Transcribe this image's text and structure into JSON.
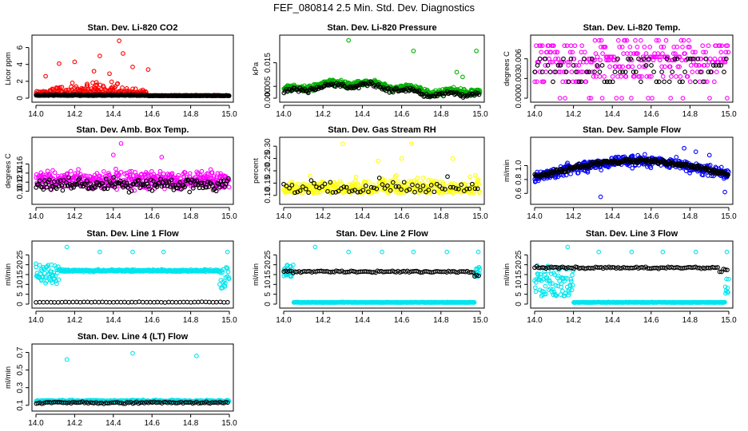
{
  "figure": {
    "title": "FEF_080814  2.5 Min. Std. Dev. Diagnostics"
  },
  "chart_data": [
    {
      "type": "scatter",
      "title": "Stan. Dev. Li-820 CO2",
      "xlabel": "",
      "ylabel": "Licor ppm",
      "xlim": [
        14.0,
        15.0
      ],
      "ylim": [
        0,
        7
      ],
      "xticks": [
        "14.0",
        "14.2",
        "14.4",
        "14.6",
        "14.8",
        "15.0"
      ],
      "yticks": [
        "0",
        "2",
        "4",
        "6"
      ],
      "series": [
        {
          "name": "color series",
          "color": "#ff0000",
          "x_range": [
            14.0,
            15.0
          ],
          "baseline": 0.3,
          "note": "scatter 0.3-3 between 14.0 and 14.57, then ~0.3",
          "points": [
            [
              14.33,
              5.0
            ],
            [
              14.2,
              4.3
            ],
            [
              14.43,
              6.8
            ],
            [
              14.45,
              5.3
            ],
            [
              14.12,
              4.1
            ],
            [
              14.5,
              3.7
            ],
            [
              14.58,
              3.4
            ],
            [
              14.05,
              2.6
            ],
            [
              14.3,
              3.2
            ],
            [
              14.38,
              2.9
            ]
          ]
        },
        {
          "name": "black series",
          "color": "#000000",
          "baseline": 0.2
        }
      ]
    },
    {
      "type": "scatter",
      "title": "Stan. Dev. Li-820 Pressure",
      "xlabel": "",
      "ylabel": "kPa",
      "xlim": [
        14.0,
        15.0
      ],
      "ylim": [
        0,
        0.025
      ],
      "xticks": [
        "14.0",
        "14.2",
        "14.4",
        "14.6",
        "14.8",
        "15.0"
      ],
      "yticks": [
        "0.000",
        "0.005",
        "0.015"
      ],
      "series": [
        {
          "name": "color series",
          "color": "#00b000",
          "note": "band ~0.003-0.008 wavy",
          "points": [
            [
              14.33,
              0.0245
            ],
            [
              14.66,
              0.02
            ],
            [
              14.98,
              0.02
            ],
            [
              14.88,
              0.011
            ],
            [
              14.91,
              0.009
            ]
          ]
        },
        {
          "name": "black series",
          "color": "#000000"
        }
      ]
    },
    {
      "type": "scatter",
      "title": "Stan. Dev. Li-820 Temp.",
      "xlabel": "",
      "ylabel": "degrees C",
      "xlim": [
        14.0,
        15.0
      ],
      "ylim": [
        0,
        0.009
      ],
      "xticks": [
        "14.0",
        "14.2",
        "14.4",
        "14.6",
        "14.8",
        "15.0"
      ],
      "yticks": [
        "0.000",
        "0.003",
        "0.006"
      ],
      "series": [
        {
          "name": "color series",
          "color": "#ff00ff",
          "levels": [
            0.0,
            0.0025,
            0.004,
            0.005,
            0.0055,
            0.006,
            0.007,
            0.008
          ]
        },
        {
          "name": "black series",
          "color": "#000000"
        }
      ]
    },
    {
      "type": "scatter",
      "title": "Stan. Dev. Amb. Box Temp.",
      "xlabel": "",
      "ylabel": "degrees C",
      "xlim": [
        14.0,
        15.0
      ],
      "ylim": [
        0.08,
        0.21
      ],
      "xticks": [
        "14.0",
        "14.2",
        "14.4",
        "14.6",
        "14.8",
        "15.0"
      ],
      "yticks": [
        "0.10",
        "0.12",
        "0.14",
        "0.16"
      ],
      "series": [
        {
          "name": "color series",
          "color": "#ff00ff",
          "points": [
            [
              14.44,
              0.205
            ],
            [
              14.4,
              0.18
            ],
            [
              14.65,
              0.175
            ]
          ]
        },
        {
          "name": "black series",
          "color": "#000000"
        }
      ]
    },
    {
      "type": "scatter",
      "title": "Stan. Dev. Gas Stream RH",
      "xlabel": "",
      "ylabel": "percent",
      "xlim": [
        14.0,
        15.0
      ],
      "ylim": [
        0.08,
        0.32
      ],
      "xticks": [
        "14.0",
        "14.2",
        "14.4",
        "14.6",
        "14.8",
        "15.0"
      ],
      "yticks": [
        "0.10",
        "0.15",
        "0.20",
        "0.25",
        "0.30"
      ],
      "series": [
        {
          "name": "color series",
          "color": "#ffff00",
          "points": [
            [
              14.3,
              0.31
            ],
            [
              14.65,
              0.31
            ],
            [
              14.86,
              0.25
            ],
            [
              14.6,
              0.25
            ],
            [
              14.48,
              0.24
            ]
          ]
        },
        {
          "name": "black series",
          "color": "#000000"
        }
      ]
    },
    {
      "type": "scatter",
      "title": "Stan. Dev. Sample Flow",
      "xlabel": "",
      "ylabel": "ml/min",
      "xlim": [
        14.0,
        15.0
      ],
      "ylim": [
        0.5,
        1.35
      ],
      "xticks": [
        "14.0",
        "14.2",
        "14.4",
        "14.6",
        "14.8",
        "15.0"
      ],
      "yticks": [
        "0.6",
        "0.8",
        "1.0"
      ],
      "series": [
        {
          "name": "color series",
          "color": "#0000ff",
          "note": "trend rises from ~0.85 to ~1.05 then falls to ~0.95",
          "points": [
            [
              14.34,
              0.55
            ],
            [
              14.77,
              1.25
            ],
            [
              14.9,
              1.15
            ],
            [
              14.83,
              1.2
            ],
            [
              14.98,
              0.62
            ]
          ]
        },
        {
          "name": "black series",
          "color": "#000000"
        }
      ]
    },
    {
      "type": "scatter",
      "title": "Stan. Dev. Line 1 Flow",
      "xlabel": "",
      "ylabel": "ml/min",
      "xlim": [
        14.0,
        15.0
      ],
      "ylim": [
        0,
        30
      ],
      "xticks": [
        "14.0",
        "14.2",
        "14.4",
        "14.6",
        "14.8",
        "15.0"
      ],
      "yticks": [
        "0",
        "5",
        "10",
        "15",
        "20",
        "25"
      ],
      "series": [
        {
          "name": "color series",
          "color": "#00e5ee",
          "baseline": 17,
          "points": [
            [
              14.16,
              29
            ],
            [
              14.33,
              26.5
            ],
            [
              14.5,
              26.5
            ],
            [
              14.66,
              26.5
            ],
            [
              14.99,
              26.5
            ],
            [
              14.0,
              20.5
            ],
            [
              14.08,
              20
            ]
          ]
        },
        {
          "name": "black series",
          "color": "#000000",
          "baseline": 1
        }
      ]
    },
    {
      "type": "scatter",
      "title": "Stan. Dev. Line 2 Flow",
      "xlabel": "",
      "ylabel": "ml/min",
      "xlim": [
        14.0,
        15.0
      ],
      "ylim": [
        0,
        30
      ],
      "xticks": [
        "14.0",
        "14.2",
        "14.4",
        "14.6",
        "14.8",
        "15.0"
      ],
      "yticks": [
        "0",
        "5",
        "10",
        "15",
        "20",
        "25"
      ],
      "series": [
        {
          "name": "color series",
          "color": "#00e5ee",
          "baseline": 0.8,
          "points": [
            [
              14.16,
              29
            ],
            [
              14.33,
              26.5
            ],
            [
              14.5,
              26.5
            ],
            [
              14.66,
              26.5
            ],
            [
              14.83,
              26.5
            ],
            [
              14.99,
              26.5
            ]
          ]
        },
        {
          "name": "black series",
          "color": "#000000",
          "baseline": 17
        }
      ]
    },
    {
      "type": "scatter",
      "title": "Stan. Dev. Line 3 Flow",
      "xlabel": "",
      "ylabel": "ml/min",
      "xlim": [
        14.0,
        15.0
      ],
      "ylim": [
        0,
        30
      ],
      "xticks": [
        "14.0",
        "14.2",
        "14.4",
        "14.6",
        "14.8",
        "15.0"
      ],
      "yticks": [
        "0",
        "5",
        "10",
        "15",
        "20",
        "25"
      ],
      "series": [
        {
          "name": "color series",
          "color": "#00e5ee",
          "baseline": 0.8,
          "points": [
            [
              14.17,
              29
            ],
            [
              14.33,
              26.5
            ],
            [
              14.5,
              26.5
            ],
            [
              14.66,
              26.5
            ],
            [
              14.83,
              26.5
            ],
            [
              14.99,
              26.5
            ],
            [
              14.05,
              5
            ]
          ]
        },
        {
          "name": "black series",
          "color": "#000000",
          "baseline": 18.5
        }
      ]
    },
    {
      "type": "scatter",
      "title": "Stan. Dev. Line 4 (LT) Flow",
      "xlabel": "",
      "ylabel": "ml/min",
      "xlim": [
        14.0,
        15.0
      ],
      "ylim": [
        0.08,
        0.75
      ],
      "xticks": [
        "14.0",
        "14.2",
        "14.4",
        "14.6",
        "14.8",
        "15.0"
      ],
      "yticks": [
        "0.1",
        "0.3",
        "0.5",
        "0.7"
      ],
      "series": [
        {
          "name": "color series",
          "color": "#00e5ee",
          "baseline": 0.15,
          "points": [
            [
              14.16,
              0.62
            ],
            [
              14.5,
              0.69
            ],
            [
              14.83,
              0.66
            ]
          ]
        },
        {
          "name": "black series",
          "color": "#000000",
          "baseline": 0.13
        }
      ]
    }
  ]
}
